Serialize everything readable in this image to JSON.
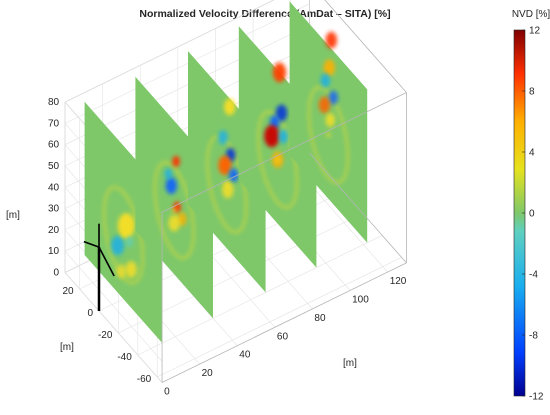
{
  "chart_data": {
    "type": "heatmap",
    "title": "Normalized Velocity Difference (AmDat – SITA) [%]",
    "xlabel": "[m]",
    "ylabel": "[m]",
    "zlabel": "[m]",
    "x_ticks": [
      "0",
      "20",
      "40",
      "60",
      "80",
      "100",
      "120"
    ],
    "y_ticks": [
      "-60",
      "-40",
      "-20",
      "0",
      "20"
    ],
    "z_ticks": [
      "0",
      "10",
      "20",
      "30",
      "40",
      "50",
      "60",
      "70",
      "80"
    ],
    "xlim": [
      0,
      130
    ],
    "ylim": [
      -65,
      35
    ],
    "zlim": [
      0,
      80
    ],
    "grid": true,
    "colormap": "jet",
    "colorbar": {
      "label": "NVD [%]",
      "ticks": [
        "12",
        "8",
        "4",
        "0",
        "-4",
        "-8",
        "-12"
      ],
      "range": [
        -12,
        12
      ],
      "placement": "right"
    },
    "slices_x_position_m": [
      13,
      40,
      68,
      95,
      122
    ],
    "turbine": {
      "rotor_diameter_m": 40,
      "hub_height_m": 30,
      "blades": 3
    }
  },
  "colors": {
    "background_field": "#7ec86a",
    "positive_max": "#800000",
    "negative_max": "#00008f",
    "zero": "#7ec86a"
  }
}
